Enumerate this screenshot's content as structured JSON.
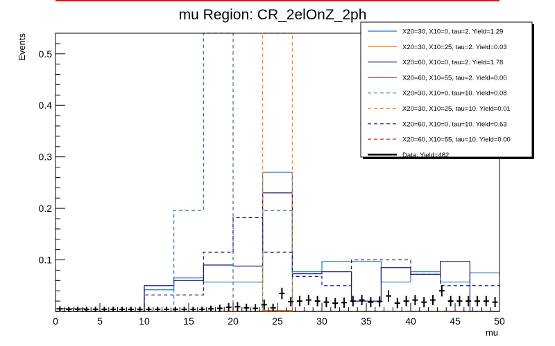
{
  "chart_data": {
    "type": "histogram",
    "title": "mu Region: CR_2elOnZ_2ph",
    "xlabel": "mu",
    "ylabel": "Events",
    "xlim": [
      0,
      50
    ],
    "ylim": [
      0,
      0.54
    ],
    "xticks": [
      "0",
      "5",
      "10",
      "15",
      "20",
      "25",
      "30",
      "35",
      "40",
      "45",
      "50"
    ],
    "yticks": [
      {
        "value": 0.1,
        "label": "0.1"
      },
      {
        "value": 0.2,
        "label": "0.2"
      },
      {
        "value": 0.3,
        "label": "0.3"
      },
      {
        "value": 0.4,
        "label": "0.4"
      },
      {
        "value": 0.5,
        "label": "0.5"
      }
    ],
    "bin_edges": [
      0,
      3.33,
      6.67,
      10,
      13.33,
      16.67,
      20,
      23.33,
      26.67,
      30,
      33.33,
      36.67,
      40,
      43.33,
      46.67,
      50
    ],
    "series": [
      {
        "name": "X20=30, X10=0, tau=2. Yield=1.29",
        "color": "#1f77b4",
        "dash": false,
        "values": [
          0.005,
          0.0,
          0.0,
          0.042,
          0.065,
          0.057,
          0.057,
          0.27,
          0.077,
          0.097,
          0.097,
          0.057,
          0.077,
          0.057,
          0.075
        ]
      },
      {
        "name": "X20=30, X10=25, tau=2. Yield=0.03",
        "color": "#ff7f0e",
        "dash": false,
        "values": [
          0.0,
          0.0,
          0.0,
          0.0,
          0.0,
          0.0,
          0.0,
          0.002,
          0.0,
          0.0,
          0.0,
          0.0,
          0.0,
          0.0,
          0.0
        ]
      },
      {
        "name": "X20=60, X10=0, tau=2. Yield=1.78",
        "color": "#1a1a80",
        "dash": false,
        "values": [
          0.005,
          0.0,
          0.0,
          0.05,
          0.06,
          0.09,
          0.088,
          0.23,
          0.073,
          0.077,
          0.02,
          0.085,
          0.072,
          0.097,
          0.0
        ]
      },
      {
        "name": "X20=60, X10=55, tau=2. Yield=0.00",
        "color": "#d62728",
        "dash": false,
        "values": [
          0.0,
          0.0,
          0.0,
          0.0,
          0.0,
          0.0,
          0.0,
          0.0,
          0.0,
          0.0,
          0.0,
          0.0,
          0.0,
          0.0,
          0.0
        ]
      },
      {
        "name": "X20=30, X10=0, tau=10. Yield=0.08",
        "color": "#1f77b4",
        "dash": true,
        "values": [
          0.0,
          0.0,
          0.0,
          0.0,
          0.196,
          0.54,
          0.0,
          0.196,
          0.0,
          0.0,
          0.0,
          0.0,
          0.0,
          0.0,
          0.0
        ]
      },
      {
        "name": "X20=30, X10=25, tau=10. Yield=0.01",
        "color": "#ff7f0e",
        "dash": true,
        "values": [
          0.0,
          0.0,
          0.0,
          0.0,
          0.0,
          0.0,
          0.0,
          0.54,
          0.0,
          0.0,
          0.0,
          0.0,
          0.0,
          0.0,
          0.0
        ]
      },
      {
        "name": "X20=60, X10=0, tau=10. Yield=0.63",
        "color": "#1a1a80",
        "dash": true,
        "values": [
          0.0,
          0.0,
          0.0,
          0.032,
          0.032,
          0.115,
          0.182,
          0.115,
          0.068,
          0.05,
          0.1,
          0.1,
          0.072,
          0.05,
          0.05
        ]
      },
      {
        "name": "X20=60, X10=55, tau=10. Yield=0.00",
        "color": "#d62728",
        "dash": true,
        "values": [
          0.0,
          0.0,
          0.0,
          0.0,
          0.0,
          0.0,
          0.0,
          0.0,
          0.0,
          0.0,
          0.0,
          0.0,
          0.0,
          0.0,
          0.0
        ]
      }
    ],
    "data_series": {
      "name": "Data. Yield=482",
      "color": "#000000",
      "x": [
        1,
        2,
        3,
        4,
        5,
        6,
        7,
        8,
        9,
        10,
        11,
        12,
        13,
        14,
        15,
        16,
        17,
        18,
        19,
        20,
        21,
        22,
        23,
        24,
        25,
        26,
        27,
        28,
        29,
        30,
        31,
        32,
        33,
        34,
        35,
        36,
        37,
        38,
        39,
        40,
        41,
        42,
        43,
        44,
        45,
        46,
        47,
        48,
        49,
        50
      ],
      "y": [
        0.005,
        0.004,
        0.004,
        0.004,
        0.004,
        0.004,
        0.004,
        0.004,
        0.004,
        0.004,
        0.004,
        0.004,
        0.004,
        0.004,
        0.004,
        0.004,
        0.004,
        0.005,
        0.006,
        0.008,
        0.009,
        0.007,
        0.006,
        0.013,
        0.007,
        0.035,
        0.019,
        0.02,
        0.022,
        0.02,
        0.018,
        0.016,
        0.017,
        0.02,
        0.022,
        0.018,
        0.019,
        0.03,
        0.016,
        0.02,
        0.022,
        0.018,
        0.022,
        0.04,
        0.02,
        0.02,
        0.02,
        0.02,
        0.02,
        0.018
      ],
      "err": [
        0.005,
        0.005,
        0.005,
        0.005,
        0.005,
        0.005,
        0.005,
        0.005,
        0.005,
        0.005,
        0.005,
        0.005,
        0.005,
        0.005,
        0.005,
        0.005,
        0.005,
        0.006,
        0.007,
        0.008,
        0.009,
        0.008,
        0.008,
        0.01,
        0.008,
        0.011,
        0.009,
        0.01,
        0.01,
        0.01,
        0.01,
        0.01,
        0.01,
        0.01,
        0.01,
        0.01,
        0.01,
        0.011,
        0.01,
        0.01,
        0.01,
        0.01,
        0.01,
        0.011,
        0.01,
        0.01,
        0.01,
        0.01,
        0.01,
        0.01
      ]
    }
  }
}
